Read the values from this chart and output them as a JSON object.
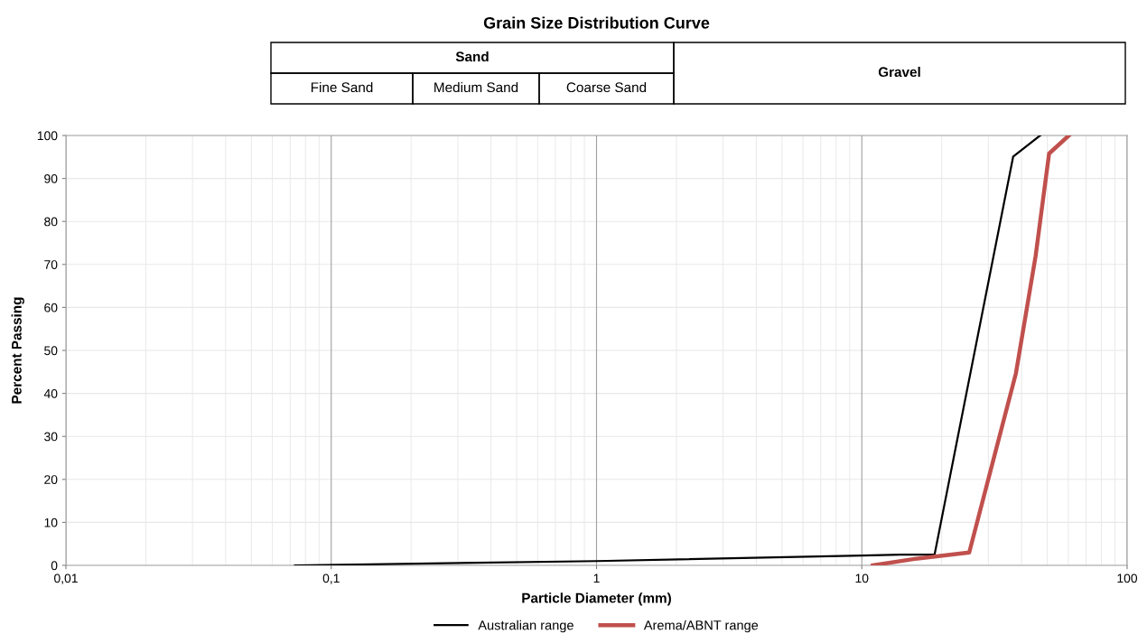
{
  "chart_data": {
    "type": "line",
    "title": "Grain Size Distribution Curve",
    "xlabel": "Particle Diameter (mm)",
    "ylabel": "Percent Passing",
    "annotations": [
      "Sand",
      "Fine Sand",
      "Medium Sand",
      "Coarse Sand",
      "Gravel"
    ],
    "log": "x",
    "xlim": [
      0.01,
      100
    ],
    "xticks": [
      {
        "value": 0.01,
        "label": "0,01"
      },
      {
        "value": 0.1,
        "label": "0,1"
      },
      1,
      10,
      100
    ],
    "ylim": [
      0,
      100
    ],
    "yticks": [
      0,
      10,
      20,
      30,
      40,
      50,
      60,
      70,
      80,
      90,
      100
    ],
    "grid": true,
    "legend": "bottom",
    "marker": "none",
    "line_style": "solid",
    "series": [
      {
        "name": "Australian range",
        "color": "#000000",
        "x": [
          0.073,
          1,
          10,
          14,
          18.8,
          37.2,
          47
        ],
        "values": [
          0,
          1,
          2.3,
          2.5,
          2.5,
          95.1,
          100
        ]
      },
      {
        "name": "Arema/ABNT range",
        "color": "#c0504d",
        "x": [
          11,
          15.8,
          25.4,
          38.1,
          45.2,
          50.8,
          60.3
        ],
        "values": [
          0,
          1.5,
          3,
          44.7,
          72,
          95.8,
          100
        ]
      }
    ]
  }
}
